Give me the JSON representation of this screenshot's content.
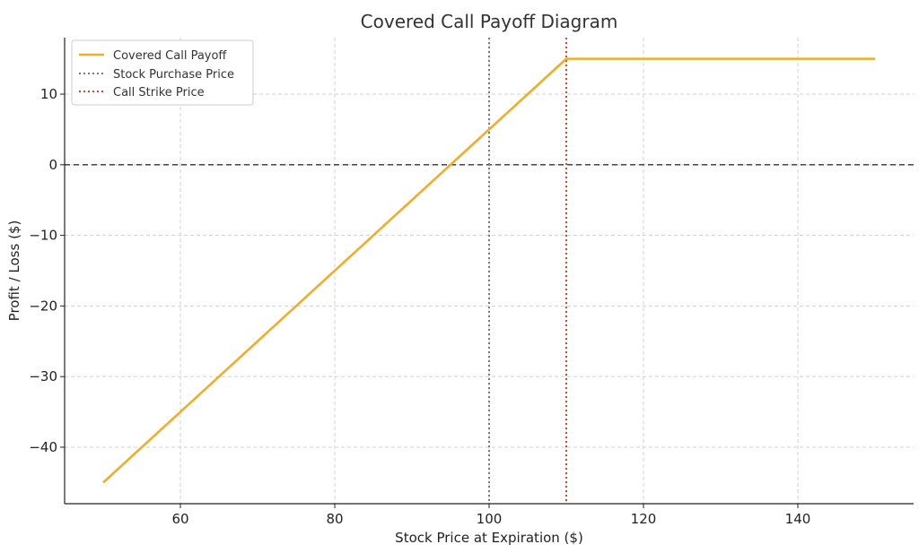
{
  "chart_data": {
    "type": "line",
    "title": "Covered Call Payoff Diagram",
    "xlabel": "Stock Price at Expiration ($)",
    "ylabel": "Profit / Loss ($)",
    "xlim": [
      45,
      155
    ],
    "ylim": [
      -48,
      18
    ],
    "xticks": [
      60,
      80,
      100,
      120,
      140
    ],
    "yticks": [
      -40,
      -30,
      -20,
      -10,
      0,
      10
    ],
    "xtick_labels": [
      "60",
      "80",
      "100",
      "120",
      "140"
    ],
    "ytick_labels": [
      "−40",
      "−30",
      "−20",
      "−10",
      "0",
      "10"
    ],
    "grid": true,
    "legend_position": "top-left",
    "series": [
      {
        "name": "Covered Call Payoff",
        "color": "#f0ad2a",
        "style": "solid",
        "x": [
          50,
          110,
          150
        ],
        "y": [
          -45,
          15,
          15
        ]
      }
    ],
    "vlines": [
      {
        "name": "Stock Purchase Price",
        "x": 100,
        "color": "#7a7a7a",
        "style": "dotted"
      },
      {
        "name": "Call Strike Price",
        "x": 110,
        "color": "#e8401c",
        "style": "dotted"
      }
    ],
    "hlines": [
      {
        "y": 0,
        "color": "#333333",
        "style": "dashed"
      }
    ]
  }
}
